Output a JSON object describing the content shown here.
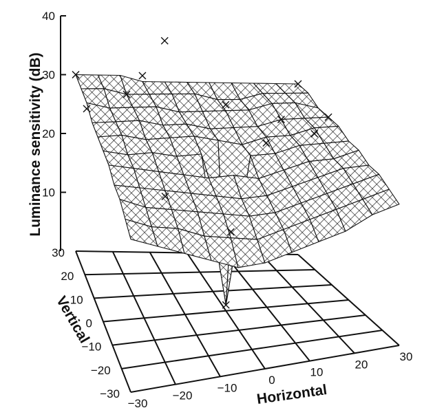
{
  "chart_data": {
    "type": "surface",
    "title": "",
    "zlabel": "Luminance sensitivity (dB)",
    "xlabel": "Horizontal",
    "ylabel": "Vertical",
    "z_ticks": [
      "10",
      "20",
      "30",
      "40"
    ],
    "x_ticks": [
      "−30",
      "−20",
      "−10",
      "0",
      "10",
      "20",
      "30"
    ],
    "y_ticks": [
      "−30",
      "−20",
      "−10",
      "0",
      "10",
      "20",
      "30"
    ],
    "xlim": [
      -30,
      30
    ],
    "ylim": [
      -30,
      30
    ],
    "zlim": [
      0,
      40
    ],
    "grid": "floor",
    "x": [
      -30,
      -24,
      -18,
      -12,
      -6,
      0,
      6,
      12,
      18,
      24,
      30
    ],
    "y": [
      -30,
      -24,
      -18,
      -12,
      -6,
      0,
      6,
      12,
      18,
      24,
      30
    ],
    "z": [
      [
        26,
        24,
        22,
        20,
        18,
        18,
        19,
        20,
        21,
        23,
        24
      ],
      [
        27,
        25,
        24,
        22,
        21,
        20,
        21,
        22,
        23,
        24,
        25
      ],
      [
        28,
        26,
        25,
        24,
        23,
        22,
        22,
        23,
        24,
        25,
        26
      ],
      [
        28,
        27,
        26,
        25,
        24,
        23,
        23,
        24,
        25,
        26,
        26
      ],
      [
        29,
        28,
        27,
        26,
        25,
        25,
        24,
        25,
        26,
        26,
        27
      ],
      [
        29,
        28,
        28,
        27,
        27,
        1,
        26,
        26,
        27,
        27,
        27
      ],
      [
        29,
        29,
        28,
        28,
        28,
        27,
        26,
        27,
        27,
        28,
        28
      ],
      [
        29,
        29,
        29,
        28,
        28,
        27,
        27,
        27,
        28,
        28,
        28
      ],
      [
        30,
        29,
        29,
        29,
        28,
        28,
        28,
        28,
        29,
        29,
        28
      ],
      [
        30,
        30,
        29,
        29,
        29,
        29,
        28,
        28,
        29,
        29,
        29
      ],
      [
        30,
        30,
        30,
        29,
        29,
        29,
        29,
        29,
        29,
        29,
        29
      ]
    ],
    "markers": [
      {
        "x": 0,
        "y": 0,
        "z": 1
      },
      {
        "x": -6,
        "y": 30,
        "z": 36
      },
      {
        "x": -30,
        "y": 30,
        "z": 30
      },
      {
        "x": -18,
        "y": 24,
        "z": 29
      },
      {
        "x": -12,
        "y": 30,
        "z": 30
      },
      {
        "x": 6,
        "y": 18,
        "z": 29
      },
      {
        "x": 18,
        "y": 12,
        "z": 28
      },
      {
        "x": 24,
        "y": 6,
        "z": 27
      },
      {
        "x": 30,
        "y": 30,
        "z": 29
      },
      {
        "x": 30,
        "y": 12,
        "z": 28
      },
      {
        "x": -30,
        "y": 18,
        "z": 29
      },
      {
        "x": 12,
        "y": 6,
        "z": 26
      },
      {
        "x": -6,
        "y": -24,
        "z": 22
      },
      {
        "x": -18,
        "y": -12,
        "z": 25
      }
    ]
  }
}
